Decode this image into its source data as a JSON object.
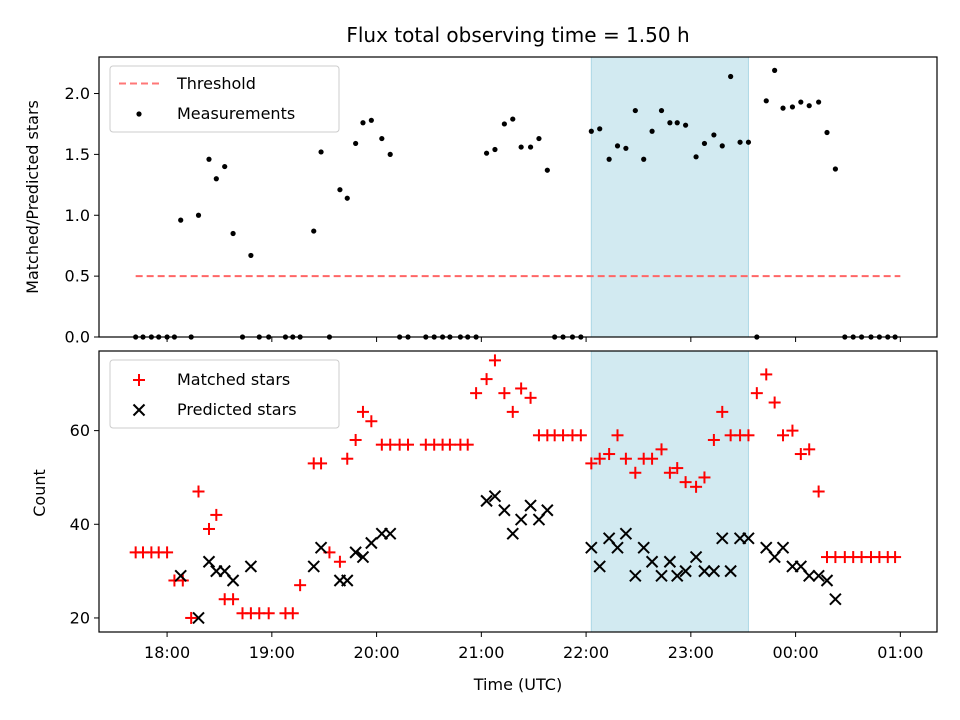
{
  "chart_data": [
    {
      "type": "scatter",
      "title": "Flux total observing time = 1.50 h",
      "xlabel": "",
      "ylabel": "Matched/Predicted stars",
      "xlim": [
        17.35,
        25.35
      ],
      "ylim": [
        0,
        2.3
      ],
      "yticks": [
        0,
        0.5,
        1.0,
        1.5,
        2.0
      ],
      "ytick_labels": [
        "0.0",
        "0.5",
        "1.0",
        "1.5",
        "2.0"
      ],
      "xticks": [
        18,
        19,
        20,
        21,
        22,
        23,
        24,
        25
      ],
      "xtick_labels": [],
      "shaded_span": [
        22.05,
        23.55
      ],
      "shaded_color": "#add8e6",
      "legend": [
        "Threshold",
        "Measurements"
      ],
      "legend_position": "upper-left",
      "threshold": {
        "name": "Threshold",
        "value": 0.5,
        "x": [
          17.7,
          25.0
        ],
        "color": "#ff6666",
        "style": "dashed"
      },
      "series": [
        {
          "name": "Measurements",
          "color": "#000000",
          "marker": "dot",
          "x": [
            17.7,
            17.77,
            17.85,
            17.92,
            18.0,
            18.07,
            18.13,
            18.23,
            18.3,
            18.4,
            18.47,
            18.55,
            18.63,
            18.72,
            18.8,
            18.88,
            18.97,
            19.13,
            19.2,
            19.27,
            19.4,
            19.47,
            19.55,
            19.65,
            19.72,
            19.8,
            19.87,
            19.95,
            20.05,
            20.13,
            20.22,
            20.3,
            20.47,
            20.55,
            20.63,
            20.7,
            20.8,
            20.87,
            20.95,
            21.05,
            21.13,
            21.22,
            21.3,
            21.38,
            21.47,
            21.55,
            21.63,
            21.7,
            21.78,
            21.87,
            21.95,
            22.05,
            22.13,
            22.22,
            22.3,
            22.38,
            22.47,
            22.55,
            22.63,
            22.72,
            22.8,
            22.87,
            22.95,
            23.05,
            23.13,
            23.22,
            23.3,
            23.38,
            23.47,
            23.55,
            23.63,
            23.72,
            23.8,
            23.88,
            23.97,
            24.05,
            24.13,
            24.22,
            24.3,
            24.38,
            24.47,
            24.55,
            24.63,
            24.72,
            24.8,
            24.88,
            24.95
          ],
          "values": [
            0,
            0,
            0,
            0,
            0,
            0,
            0.96,
            0,
            1.0,
            1.46,
            1.3,
            1.4,
            0.85,
            0,
            0.67,
            0,
            0,
            0,
            0,
            0,
            0.87,
            1.52,
            0,
            1.21,
            1.14,
            1.59,
            1.76,
            1.78,
            1.63,
            1.5,
            0,
            0,
            0,
            0,
            0,
            0,
            0,
            0,
            0,
            1.51,
            1.54,
            1.75,
            1.79,
            1.56,
            1.56,
            1.63,
            1.37,
            0,
            0,
            0,
            0,
            1.69,
            1.71,
            1.46,
            1.57,
            1.55,
            1.86,
            1.46,
            1.69,
            1.86,
            1.76,
            1.76,
            1.74,
            1.48,
            1.59,
            1.66,
            1.57,
            2.14,
            1.6,
            1.6,
            0,
            1.94,
            2.19,
            1.88,
            1.89,
            1.93,
            1.9,
            1.93,
            1.68,
            1.38,
            0,
            0,
            0,
            0,
            0,
            0,
            0
          ]
        }
      ]
    },
    {
      "type": "scatter",
      "title": "",
      "xlabel": "Time (UTC)",
      "ylabel": "Count",
      "xlim": [
        17.35,
        25.35
      ],
      "ylim": [
        17,
        77
      ],
      "yticks": [
        20,
        40,
        60
      ],
      "ytick_labels": [
        "20",
        "40",
        "60"
      ],
      "xticks": [
        18,
        19,
        20,
        21,
        22,
        23,
        24,
        25
      ],
      "xtick_labels": [
        "18:00",
        "19:00",
        "20:00",
        "21:00",
        "22:00",
        "23:00",
        "00:00",
        "01:00"
      ],
      "shaded_span": [
        22.05,
        23.55
      ],
      "shaded_color": "#add8e6",
      "legend": [
        "Matched stars",
        "Predicted stars"
      ],
      "legend_position": "upper-left",
      "series": [
        {
          "name": "Matched stars",
          "color": "#ff0000",
          "marker": "plus",
          "x": [
            17.7,
            17.77,
            17.85,
            17.92,
            18.0,
            18.07,
            18.15,
            18.23,
            18.3,
            18.4,
            18.47,
            18.55,
            18.63,
            18.72,
            18.8,
            18.88,
            18.97,
            19.13,
            19.2,
            19.27,
            19.4,
            19.47,
            19.55,
            19.65,
            19.72,
            19.8,
            19.87,
            19.95,
            20.05,
            20.13,
            20.22,
            20.3,
            20.47,
            20.55,
            20.63,
            20.7,
            20.8,
            20.87,
            20.95,
            21.05,
            21.13,
            21.22,
            21.3,
            21.38,
            21.47,
            21.55,
            21.63,
            21.7,
            21.78,
            21.87,
            21.95,
            22.05,
            22.13,
            22.22,
            22.3,
            22.38,
            22.47,
            22.55,
            22.63,
            22.72,
            22.8,
            22.87,
            22.95,
            23.05,
            23.13,
            23.22,
            23.3,
            23.38,
            23.47,
            23.55,
            23.63,
            23.72,
            23.8,
            23.88,
            23.97,
            24.05,
            24.13,
            24.22,
            24.3,
            24.38,
            24.47,
            24.55,
            24.63,
            24.72,
            24.8,
            24.88,
            24.95
          ],
          "values": [
            34,
            34,
            34,
            34,
            34,
            28,
            28,
            20,
            47,
            39,
            42,
            24,
            24,
            21,
            21,
            21,
            21,
            21,
            21,
            27,
            53,
            53,
            34,
            32,
            54,
            58,
            64,
            62,
            57,
            57,
            57,
            57,
            57,
            57,
            57,
            57,
            57,
            57,
            68,
            71,
            75,
            68,
            64,
            69,
            67,
            59,
            59,
            59,
            59,
            59,
            59,
            53,
            54,
            55,
            59,
            54,
            51,
            54,
            54,
            56,
            51,
            52,
            49,
            48,
            50,
            58,
            64,
            59,
            59,
            59,
            68,
            72,
            66,
            59,
            60,
            55,
            56,
            47,
            33,
            33,
            33,
            33,
            33,
            33,
            33,
            33,
            33
          ]
        },
        {
          "name": "Predicted stars",
          "color": "#000000",
          "marker": "x",
          "x": [
            18.13,
            18.3,
            18.4,
            18.47,
            18.55,
            18.63,
            18.8,
            19.4,
            19.47,
            19.65,
            19.72,
            19.8,
            19.87,
            19.95,
            20.05,
            20.13,
            21.05,
            21.13,
            21.22,
            21.3,
            21.38,
            21.47,
            21.55,
            21.63,
            22.05,
            22.13,
            22.22,
            22.3,
            22.38,
            22.47,
            22.55,
            22.63,
            22.72,
            22.8,
            22.87,
            22.95,
            23.05,
            23.13,
            23.22,
            23.3,
            23.38,
            23.47,
            23.55,
            23.72,
            23.8,
            23.88,
            23.97,
            24.05,
            24.13,
            24.22,
            24.3,
            24.38
          ],
          "values": [
            29,
            20,
            32,
            30,
            30,
            28,
            31,
            31,
            35,
            28,
            28,
            34,
            33,
            36,
            38,
            38,
            45,
            46,
            43,
            38,
            41,
            44,
            41,
            43,
            35,
            31,
            37,
            35,
            38,
            29,
            35,
            32,
            29,
            32,
            29,
            30,
            33,
            30,
            30,
            37,
            30,
            37,
            37,
            35,
            33,
            35,
            31,
            31,
            29,
            29,
            28,
            24
          ]
        }
      ]
    }
  ]
}
